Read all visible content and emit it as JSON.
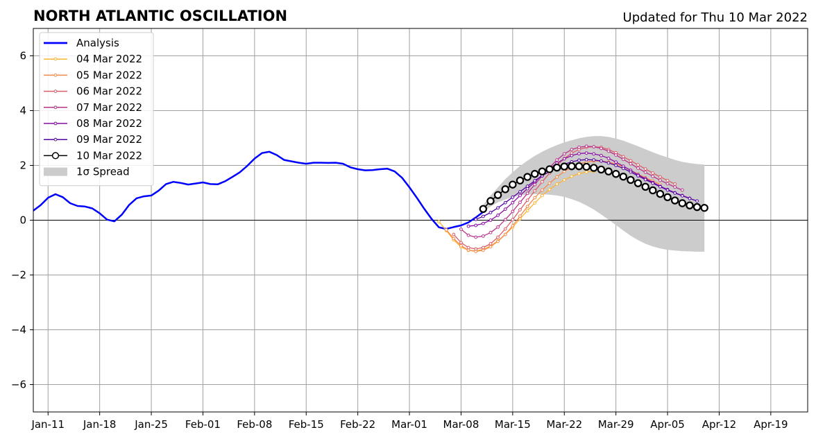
{
  "chart_data": {
    "type": "line",
    "title": "NORTH ATLANTIC OSCILLATION",
    "subtitle": "Updated for Thu 10 Mar 2022",
    "xlabel": "",
    "ylabel": "",
    "x_ticks": [
      {
        "label": "Jan-11",
        "date": "2022-01-11"
      },
      {
        "label": "Jan-18",
        "date": "2022-01-18"
      },
      {
        "label": "Jan-25",
        "date": "2022-01-25"
      },
      {
        "label": "Feb-01",
        "date": "2022-02-01"
      },
      {
        "label": "Feb-08",
        "date": "2022-02-08"
      },
      {
        "label": "Feb-15",
        "date": "2022-02-15"
      },
      {
        "label": "Feb-22",
        "date": "2022-02-22"
      },
      {
        "label": "Mar-01",
        "date": "2022-03-01"
      },
      {
        "label": "Mar-08",
        "date": "2022-03-08"
      },
      {
        "label": "Mar-15",
        "date": "2022-03-15"
      },
      {
        "label": "Mar-22",
        "date": "2022-03-22"
      },
      {
        "label": "Mar-29",
        "date": "2022-03-29"
      },
      {
        "label": "Apr-05",
        "date": "2022-04-05"
      },
      {
        "label": "Apr-12",
        "date": "2022-04-12"
      },
      {
        "label": "Apr-19",
        "date": "2022-04-19"
      }
    ],
    "y_ticks": [
      {
        "value": -6,
        "label": "−6"
      },
      {
        "value": -4,
        "label": "−4"
      },
      {
        "value": -2,
        "label": "−2"
      },
      {
        "value": 0,
        "label": "0"
      },
      {
        "value": 2,
        "label": "2"
      },
      {
        "value": 4,
        "label": "4"
      },
      {
        "value": 6,
        "label": "6"
      }
    ],
    "xlim": [
      "2022-01-09",
      "2022-04-24"
    ],
    "ylim": [
      -7,
      7
    ],
    "grid": true,
    "legend_position": "top-left",
    "series": [
      {
        "name": "Analysis",
        "color": "#0000ff",
        "markers": false,
        "start": "2022-01-09",
        "values": [
          0.35,
          0.55,
          0.82,
          0.95,
          0.84,
          0.62,
          0.52,
          0.5,
          0.43,
          0.25,
          0.02,
          -0.04,
          0.2,
          0.56,
          0.8,
          0.87,
          0.9,
          1.08,
          1.32,
          1.4,
          1.36,
          1.3,
          1.34,
          1.38,
          1.32,
          1.31,
          1.42,
          1.58,
          1.75,
          1.98,
          2.25,
          2.45,
          2.5,
          2.38,
          2.2,
          2.15,
          2.1,
          2.06,
          2.1,
          2.1,
          2.09,
          2.1,
          2.06,
          1.93,
          1.86,
          1.82,
          1.83,
          1.86,
          1.88,
          1.78,
          1.55,
          1.2,
          0.82,
          0.42,
          0.05,
          -0.26,
          -0.32,
          -0.25,
          -0.19,
          -0.08,
          0.1,
          0.3
        ]
      },
      {
        "name": "04 Mar 2022",
        "color": "#fdb42f",
        "markers": true,
        "start": "2022-03-05",
        "values": [
          -0.05,
          -0.38,
          -0.72,
          -0.98,
          -1.1,
          -1.12,
          -1.07,
          -0.94,
          -0.75,
          -0.52,
          -0.25,
          0.05,
          0.35,
          0.63,
          0.9,
          1.12,
          1.32,
          1.47,
          1.6,
          1.7,
          1.76,
          1.79
        ]
      },
      {
        "name": "05 Mar 2022",
        "color": "#f48849",
        "markers": true,
        "start": "2022-03-06",
        "values": [
          -0.35,
          -0.67,
          -0.93,
          -1.09,
          -1.14,
          -1.1,
          -0.97,
          -0.77,
          -0.52,
          -0.2,
          0.15,
          0.5,
          0.82,
          1.1,
          1.35,
          1.58,
          1.78,
          1.93,
          2.05,
          2.12,
          2.16,
          2.16,
          2.12,
          2.05,
          1.95,
          1.82,
          1.68,
          1.55,
          1.43,
          1.31
        ]
      },
      {
        "name": "06 Mar 2022",
        "color": "#db5c68",
        "markers": true,
        "start": "2022-03-07",
        "values": [
          -0.52,
          -0.82,
          -1.0,
          -1.05,
          -1.0,
          -0.86,
          -0.62,
          -0.32,
          0.02,
          0.38,
          0.73,
          1.07,
          1.4,
          1.72,
          2.0,
          2.25,
          2.45,
          2.58,
          2.66,
          2.68,
          2.66,
          2.58,
          2.46,
          2.32,
          2.17,
          2.02,
          1.87,
          1.72,
          1.58,
          1.45,
          1.32
        ]
      },
      {
        "name": "07 Mar 2022",
        "color": "#b83289",
        "markers": true,
        "start": "2022-03-08",
        "values": [
          -0.33,
          -0.55,
          -0.62,
          -0.58,
          -0.45,
          -0.25,
          0.02,
          0.32,
          0.65,
          0.98,
          1.3,
          1.62,
          1.92,
          2.2,
          2.42,
          2.58,
          2.66,
          2.7,
          2.68,
          2.62,
          2.52,
          2.38,
          2.22,
          2.06,
          1.9,
          1.75,
          1.6,
          1.46,
          1.33,
          1.21,
          1.1
        ]
      },
      {
        "name": "08 Mar 2022",
        "color": "#8b0aa5",
        "markers": true,
        "start": "2022-03-09",
        "values": [
          -0.22,
          -0.19,
          -0.12,
          0.0,
          0.18,
          0.4,
          0.64,
          0.9,
          1.15,
          1.4,
          1.65,
          1.88,
          2.08,
          2.24,
          2.36,
          2.43,
          2.45,
          2.42,
          2.36,
          2.26,
          2.12,
          1.97,
          1.82,
          1.66,
          1.52,
          1.38,
          1.24,
          1.12,
          1.0,
          0.9,
          0.8
        ]
      },
      {
        "name": "09 Mar 2022",
        "color": "#5302a3",
        "markers": true,
        "start": "2022-03-10",
        "values": [
          0.03,
          0.14,
          0.28,
          0.45,
          0.64,
          0.84,
          1.04,
          1.24,
          1.44,
          1.62,
          1.78,
          1.92,
          2.04,
          2.13,
          2.19,
          2.21,
          2.2,
          2.16,
          2.09,
          2.0,
          1.89,
          1.76,
          1.62,
          1.48,
          1.35,
          1.22,
          1.1,
          0.99,
          0.89,
          0.79,
          0.7
        ]
      },
      {
        "name": "10 Mar 2022",
        "color": "#000000",
        "markers": true,
        "marker_style": "large-open-circle",
        "start": "2022-03-11",
        "values": [
          0.41,
          0.7,
          0.92,
          1.13,
          1.3,
          1.45,
          1.58,
          1.69,
          1.78,
          1.86,
          1.92,
          1.96,
          1.97,
          1.97,
          1.95,
          1.91,
          1.85,
          1.78,
          1.69,
          1.59,
          1.47,
          1.35,
          1.22,
          1.09,
          0.96,
          0.84,
          0.72,
          0.62,
          0.54,
          0.48,
          0.45
        ]
      }
    ],
    "spread": {
      "name": "1σ Spread",
      "color": "#cccccc",
      "start": "2022-03-11",
      "upper": [
        0.55,
        0.9,
        1.2,
        1.5,
        1.75,
        1.98,
        2.17,
        2.35,
        2.5,
        2.63,
        2.74,
        2.84,
        2.92,
        2.99,
        3.04,
        3.07,
        3.07,
        3.04,
        2.98,
        2.9,
        2.8,
        2.7,
        2.59,
        2.48,
        2.38,
        2.29,
        2.2,
        2.13,
        2.08,
        2.05,
        2.03
      ],
      "lower": [
        0.3,
        0.5,
        0.65,
        0.76,
        0.84,
        0.9,
        0.93,
        0.95,
        0.95,
        0.93,
        0.9,
        0.85,
        0.77,
        0.67,
        0.54,
        0.39,
        0.21,
        0.02,
        -0.18,
        -0.38,
        -0.57,
        -0.73,
        -0.86,
        -0.96,
        -1.03,
        -1.08,
        -1.11,
        -1.13,
        -1.14,
        -1.15,
        -1.15
      ]
    }
  }
}
